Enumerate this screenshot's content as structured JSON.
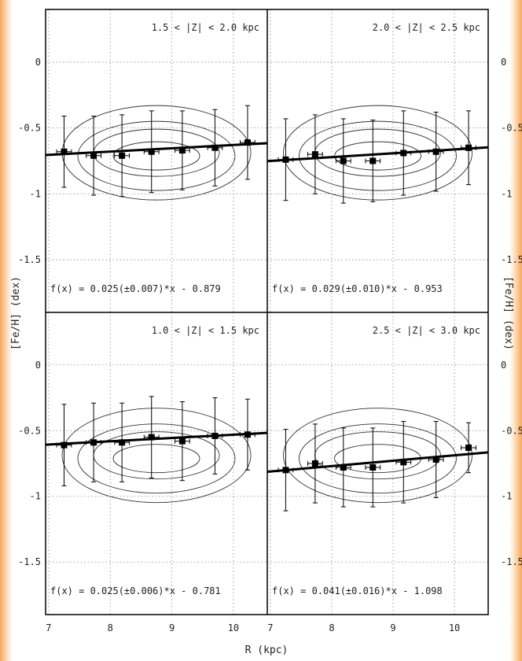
{
  "chart_data": [
    {
      "type": "scatter",
      "panel": "top-left",
      "label": "1.5 < |Z| < 2.0 kpc",
      "fit_text": "f(x) = 0.025(±0.007)*x - 0.879",
      "fit": {
        "slope": 0.025,
        "slope_err": 0.007,
        "intercept": -0.879
      },
      "xlim": [
        6.95,
        10.55
      ],
      "ylim": [
        -1.9,
        0.4
      ],
      "points": [
        {
          "x": 7.25,
          "y": -0.68,
          "yerr": 0.27,
          "xerr": 0.12
        },
        {
          "x": 7.73,
          "y": -0.71,
          "yerr": 0.3,
          "xerr": 0.12
        },
        {
          "x": 8.19,
          "y": -0.71,
          "yerr": 0.31,
          "xerr": 0.12
        },
        {
          "x": 8.67,
          "y": -0.68,
          "yerr": 0.31,
          "xerr": 0.12
        },
        {
          "x": 9.17,
          "y": -0.67,
          "yerr": 0.3,
          "xerr": 0.12
        },
        {
          "x": 9.7,
          "y": -0.65,
          "yerr": 0.29,
          "xerr": 0.12
        },
        {
          "x": 10.23,
          "y": -0.61,
          "yerr": 0.28,
          "xerr": 0.12
        }
      ]
    },
    {
      "type": "scatter",
      "panel": "top-right",
      "label": "2.0 < |Z| < 2.5 kpc",
      "fit_text": "f(x) = 0.029(±0.010)*x - 0.953",
      "fit": {
        "slope": 0.029,
        "slope_err": 0.01,
        "intercept": -0.953
      },
      "xlim": [
        6.95,
        10.55
      ],
      "ylim": [
        -1.9,
        0.4
      ],
      "points": [
        {
          "x": 7.25,
          "y": -0.74,
          "yerr": 0.31,
          "xerr": 0.12
        },
        {
          "x": 7.73,
          "y": -0.7,
          "yerr": 0.3,
          "xerr": 0.12
        },
        {
          "x": 8.19,
          "y": -0.75,
          "yerr": 0.32,
          "xerr": 0.12
        },
        {
          "x": 8.67,
          "y": -0.75,
          "yerr": 0.31,
          "xerr": 0.12
        },
        {
          "x": 9.17,
          "y": -0.69,
          "yerr": 0.32,
          "xerr": 0.12
        },
        {
          "x": 9.7,
          "y": -0.68,
          "yerr": 0.3,
          "xerr": 0.12
        },
        {
          "x": 10.23,
          "y": -0.65,
          "yerr": 0.28,
          "xerr": 0.12
        }
      ]
    },
    {
      "type": "scatter",
      "panel": "bottom-left",
      "label": "1.0 < |Z| < 1.5 kpc",
      "fit_text": "f(x) = 0.025(±0.006)*x - 0.781",
      "fit": {
        "slope": 0.025,
        "slope_err": 0.006,
        "intercept": -0.781
      },
      "xlim": [
        6.95,
        10.55
      ],
      "ylim": [
        -1.9,
        0.4
      ],
      "points": [
        {
          "x": 7.25,
          "y": -0.61,
          "yerr": 0.31,
          "xerr": 0.12
        },
        {
          "x": 7.73,
          "y": -0.59,
          "yerr": 0.3,
          "xerr": 0.12
        },
        {
          "x": 8.19,
          "y": -0.59,
          "yerr": 0.3,
          "xerr": 0.12
        },
        {
          "x": 8.67,
          "y": -0.55,
          "yerr": 0.31,
          "xerr": 0.12
        },
        {
          "x": 9.17,
          "y": -0.58,
          "yerr": 0.3,
          "xerr": 0.12
        },
        {
          "x": 9.7,
          "y": -0.54,
          "yerr": 0.29,
          "xerr": 0.12
        },
        {
          "x": 10.23,
          "y": -0.53,
          "yerr": 0.27,
          "xerr": 0.12
        }
      ]
    },
    {
      "type": "scatter",
      "panel": "bottom-right",
      "label": "2.5 < |Z| < 3.0 kpc",
      "fit_text": "f(x) = 0.041(±0.016)*x - 1.098",
      "fit": {
        "slope": 0.041,
        "slope_err": 0.016,
        "intercept": -1.098
      },
      "xlim": [
        6.95,
        10.55
      ],
      "ylim": [
        -1.9,
        0.4
      ],
      "points": [
        {
          "x": 7.25,
          "y": -0.8,
          "yerr": 0.31,
          "xerr": 0.12
        },
        {
          "x": 7.73,
          "y": -0.75,
          "yerr": 0.3,
          "xerr": 0.12
        },
        {
          "x": 8.19,
          "y": -0.78,
          "yerr": 0.3,
          "xerr": 0.12
        },
        {
          "x": 8.67,
          "y": -0.78,
          "yerr": 0.3,
          "xerr": 0.12
        },
        {
          "x": 9.17,
          "y": -0.74,
          "yerr": 0.31,
          "xerr": 0.12
        },
        {
          "x": 9.7,
          "y": -0.72,
          "yerr": 0.29,
          "xerr": 0.12
        },
        {
          "x": 10.23,
          "y": -0.63,
          "yerr": 0.19,
          "xerr": 0.12
        }
      ]
    }
  ],
  "axes": {
    "xlabel": "R (kpc)",
    "ylabel_left": "[Fe/H] (dex)",
    "ylabel_right": "[Fe/H] (dex)",
    "x_ticks": [
      7,
      8,
      9,
      10
    ],
    "x_tick_labels": [
      "7",
      "8",
      "9",
      "10"
    ],
    "y_ticks": [
      0,
      -0.5,
      -1,
      -1.5
    ],
    "y_tick_labels": [
      "0",
      "-0.5",
      "-1",
      "-1.5"
    ],
    "grid": "dotted"
  }
}
